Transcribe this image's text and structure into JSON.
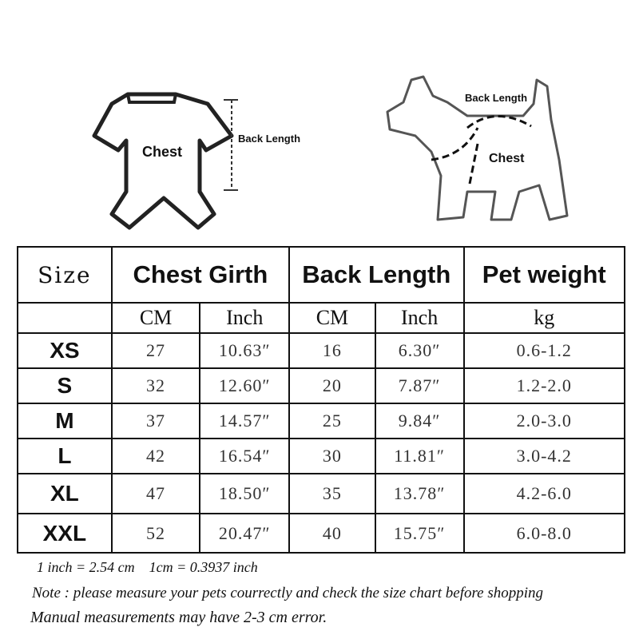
{
  "illustrations": {
    "garment": {
      "chest_label": "Chest",
      "back_length_label": "Back Length"
    },
    "dog": {
      "back_length_label": "Back Length",
      "chest_label": "Chest"
    }
  },
  "table": {
    "headers": {
      "size": "Size",
      "chest_girth": "Chest Girth",
      "back_length": "Back Length",
      "pet_weight": "Pet weight"
    },
    "units": [
      "CM",
      "Inch",
      "CM",
      "Inch",
      "kg"
    ],
    "rows": [
      {
        "size": "XS",
        "chest_cm": "27",
        "chest_inch": "10.63″",
        "back_cm": "16",
        "back_inch": "6.30″",
        "weight": "0.6-1.2"
      },
      {
        "size": "S",
        "chest_cm": "32",
        "chest_inch": "12.60″",
        "back_cm": "20",
        "back_inch": "7.87″",
        "weight": "1.2-2.0"
      },
      {
        "size": "M",
        "chest_cm": "37",
        "chest_inch": "14.57″",
        "back_cm": "25",
        "back_inch": "9.84″",
        "weight": "2.0-3.0"
      },
      {
        "size": "L",
        "chest_cm": "42",
        "chest_inch": "16.54″",
        "back_cm": "30",
        "back_inch": "11.81″",
        "weight": "3.0-4.2"
      },
      {
        "size": "XL",
        "chest_cm": "47",
        "chest_inch": "18.50″",
        "back_cm": "35",
        "back_inch": "13.78″",
        "weight": "4.2-6.0"
      },
      {
        "size": "XXL",
        "chest_cm": "52",
        "chest_inch": "20.47″",
        "back_cm": "40",
        "back_inch": "15.75″",
        "weight": "6.0-8.0"
      }
    ]
  },
  "notes": {
    "conversion": "1 inch = 2.54 cm    1cm = 0.3937 inch",
    "note": "Note : please measure your pets courrectly and check the size chart before shopping",
    "error": "Manual measurements may have 2-3 cm error."
  }
}
